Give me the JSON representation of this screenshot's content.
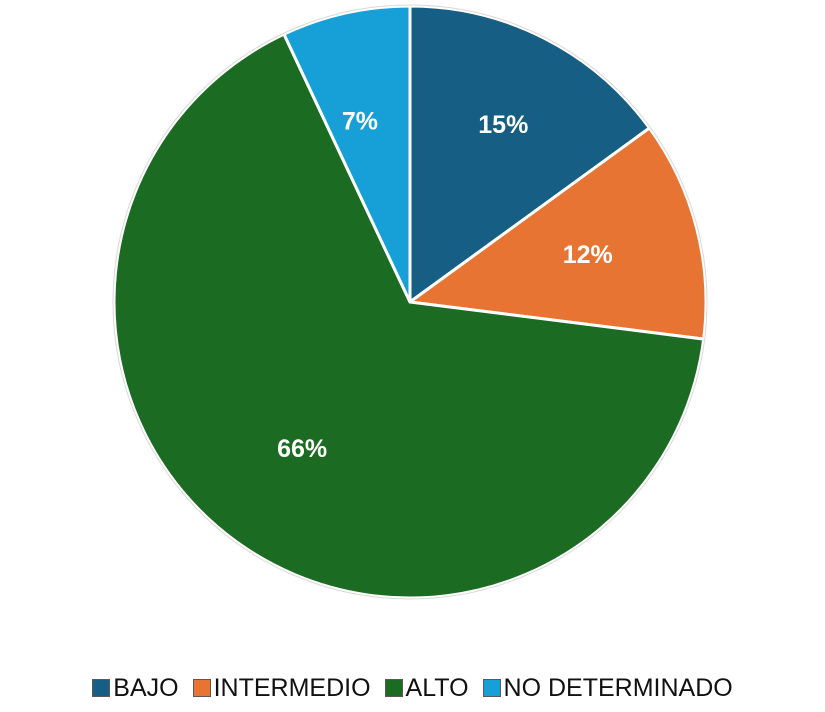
{
  "chart_data": {
    "type": "pie",
    "title": "",
    "categories": [
      "BAJO",
      "INTERMEDIO",
      "ALTO",
      "NO DETERMINADO"
    ],
    "values": [
      15,
      12,
      66,
      7
    ],
    "data_labels": [
      "15%",
      "12%",
      "66%",
      "7%"
    ],
    "colors": [
      "#175e85",
      "#e87433",
      "#1c6b23",
      "#17a0d7"
    ],
    "start_angle_deg": 0,
    "direction": "clockwise",
    "legend_position": "bottom"
  }
}
